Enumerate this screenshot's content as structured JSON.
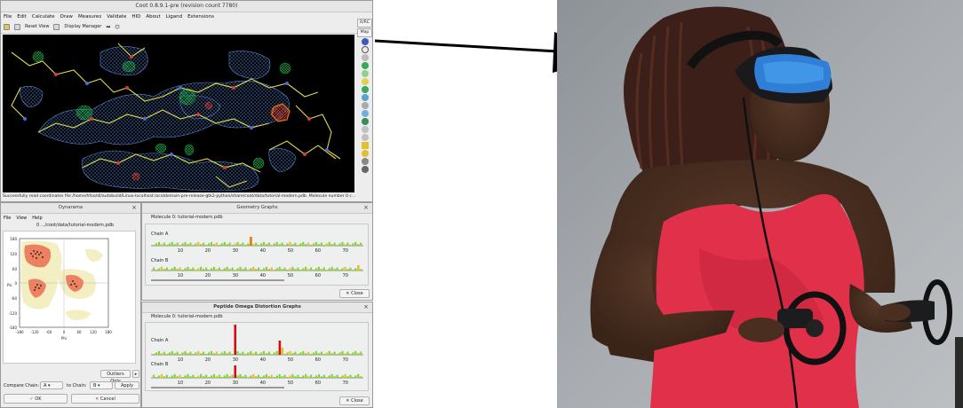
{
  "coot": {
    "title": "Coot 0.8.9.1-pre (revision count 7780)",
    "menu": [
      "File",
      "Edit",
      "Calculate",
      "Draw",
      "Measures",
      "Validate",
      "HID",
      "About",
      "Ligand",
      "Extensions"
    ],
    "toolbar": {
      "reset_view": "Reset View",
      "display_manager": "Display Manager"
    },
    "right_strip": {
      "rrc": "R/RC",
      "map": "Map"
    },
    "status": "Successfully read coordinates file /home/hfoo/dl/autobuild/Linux-localhost.localdomain-pre-release-gtk2-python/share/coot/data/tutorial-modern.pdb.  Molecule number 0 c..."
  },
  "dynarama": {
    "title": "Dynarama",
    "menu": [
      "File",
      "View",
      "Help"
    ],
    "subtitle": "0 .../coot/data/tutorial-modern.pdb",
    "y_ticks": [
      "180",
      "120",
      "60",
      "0",
      "-60",
      "-120",
      "-180"
    ],
    "x_ticks": [
      "-180",
      "-120",
      "-60",
      "0",
      "60",
      "120",
      "180"
    ],
    "xlabel": "Phi",
    "ylabel": "Psi",
    "outliers_only": "Outliers Only",
    "compare_chain": "Compare Chain:",
    "chain_a_val": "A",
    "to_chain": "to Chain:",
    "chain_b_val": "B",
    "apply": "Apply",
    "ok": "OK",
    "cancel": "Cancel"
  },
  "geometry": {
    "title": "Geometry Graphs",
    "molecule": "Molecule 0: tutorial-modern.pdb",
    "chain_a": "Chain A",
    "chain_b": "Chain B",
    "ticks": [
      "10",
      "20",
      "30",
      "40",
      "50",
      "60",
      "70"
    ],
    "close": "Close"
  },
  "omega": {
    "title": "Peptide Omega Distortion Graphs",
    "molecule": "Molecule 0: tutorial-modern.pdb",
    "chain_a": "Chain A",
    "chain_b": "Chain B",
    "ticks": [
      "10",
      "20",
      "30",
      "40",
      "50",
      "60",
      "70"
    ],
    "close": "Close"
  },
  "colors": {
    "viewport_bg": "#000000",
    "map_mesh": "#4a7fd0",
    "diff_map_pos": "#1ea84a",
    "diff_map_neg": "#d83a2a",
    "carbon_bond": "#e2d84a",
    "geometry_bar_ok": "#8ccf3a",
    "geometry_bar_warn": "#e8c020",
    "geometry_bar_bad": "#e07a10",
    "omega_bar_bad": "#d01010"
  }
}
